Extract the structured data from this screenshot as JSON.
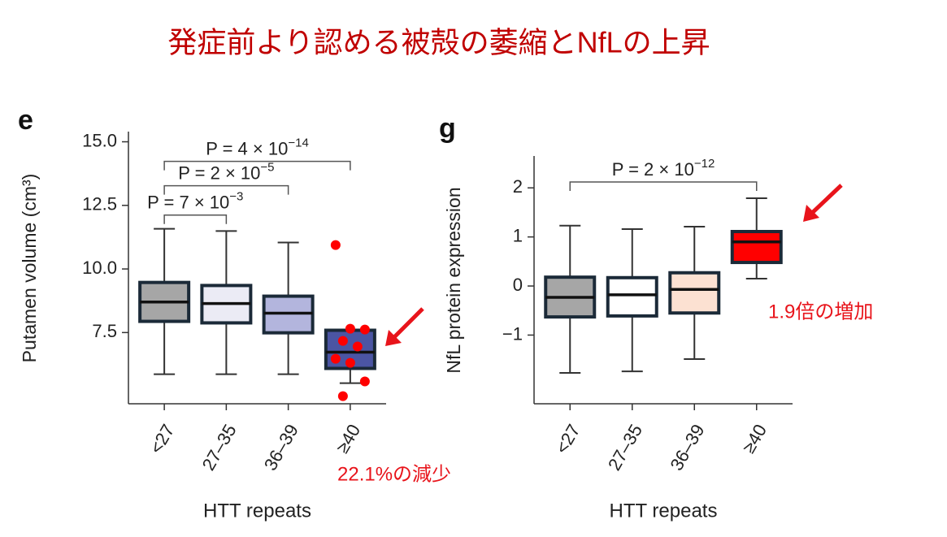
{
  "title": "発症前より認める被殻の萎縮とNfLの上昇",
  "chart_data": [
    {
      "type": "box",
      "panel": "e",
      "y_label": "Putamen volume (cm³)",
      "x_label": "HTT repeats",
      "categories": [
        "<27",
        "27–35",
        "36–39",
        "≥40"
      ],
      "ylim": [
        4.7,
        15.4
      ],
      "yticks": [
        {
          "value": 7.5,
          "label": "7.5"
        },
        {
          "value": 10,
          "label": "10.0"
        },
        12.5,
        {
          "value": 15,
          "label": "15.0"
        }
      ],
      "boxes": [
        {
          "whisker_low": 5.86,
          "q1": 7.94,
          "median": 8.7,
          "q3": 9.47,
          "whisker_high": 11.58,
          "color": "#a6a6a6"
        },
        {
          "whisker_low": 5.86,
          "q1": 7.88,
          "median": 8.64,
          "q3": 9.35,
          "whisker_high": 11.49,
          "color": "#ebebf5"
        },
        {
          "whisker_low": 5.86,
          "q1": 7.49,
          "median": 8.26,
          "q3": 8.93,
          "whisker_high": 11.04,
          "color": "#b3b5dd"
        },
        {
          "whisker_low": 5.51,
          "q1": 6.09,
          "median": 6.73,
          "q3": 7.59,
          "whisker_high": 7.59,
          "color": "#4b55a3",
          "points": [
            10.94,
            7.65,
            7.62,
            7.17,
            6.95,
            6.47,
            6.31,
            5.58,
            5.0
          ],
          "points_color": "#ff0000"
        }
      ],
      "brackets": [
        {
          "label": "P = 7 × 10",
          "exponent": "−3",
          "from": 0,
          "to": 1,
          "y": 12.12
        },
        {
          "label": "P = 2 × 10",
          "exponent": "−5",
          "from": 0,
          "to": 2,
          "y": 13.27
        },
        {
          "label": "P = 4 × 10",
          "exponent": "−14",
          "from": 0,
          "to": 3,
          "y": 14.23
        }
      ],
      "annotation": "22.1%の減少"
    },
    {
      "type": "box",
      "panel": "g",
      "y_label": "NfL protein expression",
      "x_label": "HTT repeats",
      "categories": [
        "<27",
        "27–35",
        "36–39",
        "≥40"
      ],
      "ylim": [
        -2.4,
        2.65
      ],
      "yticks": [
        {
          "value": -1,
          "label": "−1"
        },
        0,
        1,
        2
      ],
      "boxes": [
        {
          "whisker_low": -1.77,
          "q1": -0.63,
          "median": -0.23,
          "q3": 0.18,
          "whisker_high": 1.23,
          "color": "#a6a6a6"
        },
        {
          "whisker_low": -1.74,
          "q1": -0.61,
          "median": -0.18,
          "q3": 0.17,
          "whisker_high": 1.16,
          "color": "#ffffff"
        },
        {
          "whisker_low": -1.49,
          "q1": -0.55,
          "median": -0.07,
          "q3": 0.27,
          "whisker_high": 1.21,
          "color": "#fce1d2"
        },
        {
          "whisker_low": 0.15,
          "q1": 0.48,
          "median": 0.9,
          "q3": 1.11,
          "whisker_high": 1.79,
          "color": "#ff0000"
        }
      ],
      "brackets": [
        {
          "label": "P = 2 × 10",
          "exponent": "−12",
          "from": 0,
          "to": 3,
          "y": 2.12
        }
      ],
      "annotation": "1.9倍の増加"
    }
  ]
}
